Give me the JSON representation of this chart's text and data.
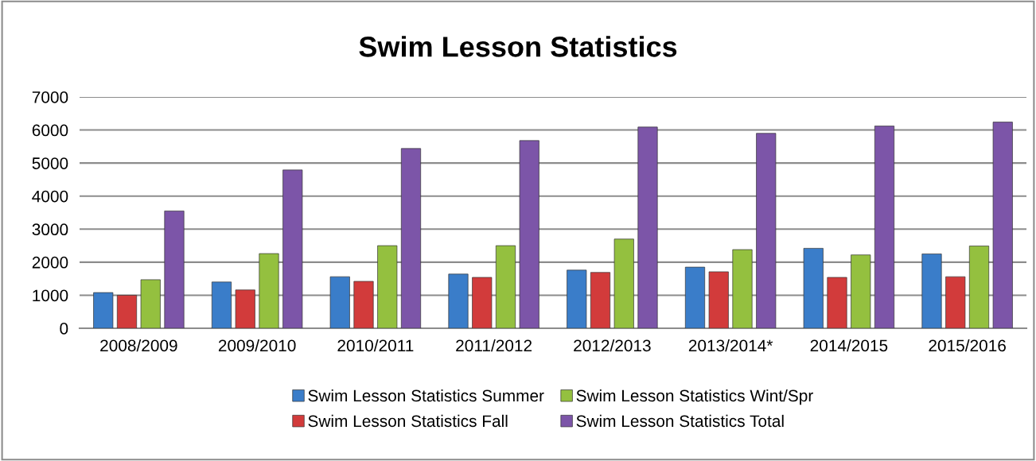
{
  "chart_data": {
    "type": "bar",
    "title": "Swim Lesson Statistics",
    "categories": [
      "2008/2009",
      "2009/2010",
      "2010/2011",
      "2011/2012",
      "2012/2013",
      "2013/2014*",
      "2014/2015",
      "2015/2016"
    ],
    "series": [
      {
        "name": "Swim Lesson Statistics Summer",
        "color": "#3a7dc9",
        "values": [
          1080,
          1400,
          1560,
          1640,
          1760,
          1850,
          2420,
          2250
        ]
      },
      {
        "name": "Swim Lesson Statistics Fall",
        "color": "#d23b3b",
        "values": [
          1000,
          1160,
          1420,
          1540,
          1690,
          1710,
          1540,
          1560
        ]
      },
      {
        "name": "Swim Lesson Statistics Wint/Spr",
        "color": "#94c03f",
        "values": [
          1470,
          2260,
          2500,
          2500,
          2700,
          2380,
          2220,
          2490
        ]
      },
      {
        "name": "Swim Lesson Statistics Total",
        "color": "#7c55a8",
        "values": [
          3550,
          4790,
          5440,
          5680,
          6090,
          5900,
          6120,
          6240
        ]
      }
    ],
    "ylim": [
      0,
      7000
    ],
    "yticks": [
      0,
      1000,
      2000,
      3000,
      4000,
      5000,
      6000,
      7000
    ],
    "grid": "y",
    "legend": "bottom"
  }
}
